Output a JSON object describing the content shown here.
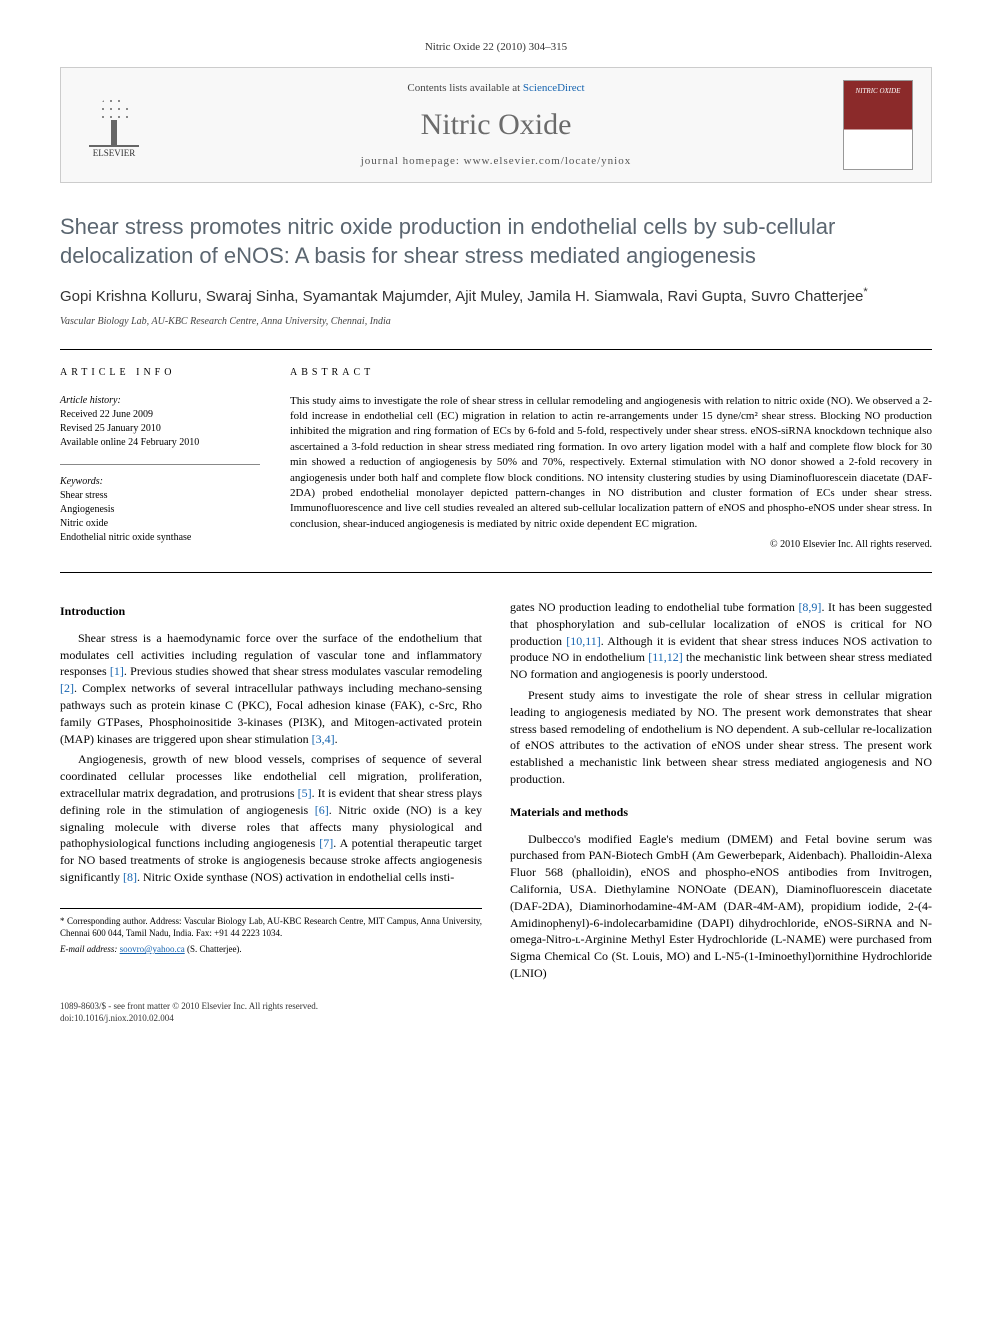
{
  "journal_header": "Nitric Oxide 22 (2010) 304–315",
  "masthead": {
    "contents_prefix": "Contents lists available at ",
    "contents_link": "ScienceDirect",
    "journal_name": "Nitric Oxide",
    "homepage_prefix": "journal homepage: ",
    "homepage_url": "www.elsevier.com/locate/yniox",
    "publisher_label": "ELSEVIER"
  },
  "article": {
    "title": "Shear stress promotes nitric oxide production in endothelial cells by sub-cellular delocalization of eNOS: A basis for shear stress mediated angiogenesis",
    "authors": "Gopi Krishna Kolluru, Swaraj Sinha, Syamantak Majumder, Ajit Muley, Jamila H. Siamwala, Ravi Gupta, Suvro Chatterjee",
    "corresponding_mark": "*",
    "affiliation": "Vascular Biology Lab, AU-KBC Research Centre, Anna University, Chennai, India"
  },
  "info": {
    "label": "ARTICLE INFO",
    "history_label": "Article history:",
    "received": "Received 22 June 2009",
    "revised": "Revised 25 January 2010",
    "online": "Available online 24 February 2010",
    "keywords_label": "Keywords:",
    "keywords": [
      "Shear stress",
      "Angiogenesis",
      "Nitric oxide",
      "Endothelial nitric oxide synthase"
    ]
  },
  "abstract": {
    "label": "ABSTRACT",
    "text": "This study aims to investigate the role of shear stress in cellular remodeling and angiogenesis with relation to nitric oxide (NO). We observed a 2-fold increase in endothelial cell (EC) migration in relation to actin re-arrangements under 15 dyne/cm² shear stress. Blocking NO production inhibited the migration and ring formation of ECs by 6-fold and 5-fold, respectively under shear stress. eNOS-siRNA knockdown technique also ascertained a 3-fold reduction in shear stress mediated ring formation. In ovo artery ligation model with a half and complete flow block for 30 min showed a reduction of angiogenesis by 50% and 70%, respectively. External stimulation with NO donor showed a 2-fold recovery in angiogenesis under both half and complete flow block conditions. NO intensity clustering studies by using Diaminofluorescein diacetate (DAF-2DA) probed endothelial monolayer depicted pattern-changes in NO distribution and cluster formation of ECs under shear stress. Immunofluorescence and live cell studies revealed an altered sub-cellular localization pattern of eNOS and phospho-eNOS under shear stress. In conclusion, shear-induced angiogenesis is mediated by nitric oxide dependent EC migration.",
    "copyright": "© 2010 Elsevier Inc. All rights reserved."
  },
  "body": {
    "intro_heading": "Introduction",
    "intro_p1": "Shear stress is a haemodynamic force over the surface of the endothelium that modulates cell activities including regulation of vascular tone and inflammatory responses [1]. Previous studies showed that shear stress modulates vascular remodeling [2]. Complex networks of several intracellular pathways including mechano-sensing pathways such as protein kinase C (PKC), Focal adhesion kinase (FAK), c-Src, Rho family GTPases, Phosphoinositide 3-kinases (PI3K), and Mitogen-activated protein (MAP) kinases are triggered upon shear stimulation [3,4].",
    "intro_p2": "Angiogenesis, growth of new blood vessels, comprises of sequence of several coordinated cellular processes like endothelial cell migration, proliferation, extracellular matrix degradation, and protrusions [5]. It is evident that shear stress plays defining role in the stimulation of angiogenesis [6]. Nitric oxide (NO) is a key signaling molecule with diverse roles that affects many physiological and pathophysiological functions including angiogenesis [7]. A potential therapeutic target for NO based treatments of stroke is angiogenesis because stroke affects angiogenesis significantly [8]. Nitric Oxide synthase (NOS) activation in endothelial cells insti-",
    "intro_p3": "gates NO production leading to endothelial tube formation [8,9]. It has been suggested that phosphorylation and sub-cellular localization of eNOS is critical for NO production [10,11]. Although it is evident that shear stress induces NOS activation to produce NO in endothelium [11,12] the mechanistic link between shear stress mediated NO formation and angiogenesis is poorly understood.",
    "intro_p4": "Present study aims to investigate the role of shear stress in cellular migration leading to angiogenesis mediated by NO. The present work demonstrates that shear stress based remodeling of endothelium is NO dependent. A sub-cellular re-localization of eNOS attributes to the activation of eNOS under shear stress. The present work established a mechanistic link between shear stress mediated angiogenesis and NO production.",
    "mm_heading": "Materials and methods",
    "mm_p1": "Dulbecco's modified Eagle's medium (DMEM) and Fetal bovine serum was purchased from PAN-Biotech GmbH (Am Gewerbepark, Aidenbach). Phalloidin-Alexa Fluor 568 (phalloidin), eNOS and phospho-eNOS antibodies from Invitrogen, California, USA. Diethylamine NONOate (DEAN), Diaminofluorescein diacetate (DAF-2DA), Diaminorhodamine-4M-AM (DAR-4M-AM), propidium iodide, 2-(4-Amidinophenyl)-6-indolecarbamidine (DAPI) dihydrochloride, eNOS-SiRNA and N-omega-Nitro-ʟ-Arginine Methyl Ester Hydrochloride (L-NAME) were purchased from Sigma Chemical Co (St. Louis, MO) and L-N5-(1-Iminoethyl)ornithine Hydrochloride (LNIO)"
  },
  "footnotes": {
    "corresponding": "* Corresponding author. Address: Vascular Biology Lab, AU-KBC Research Centre, MIT Campus, Anna University, Chennai 600 044, Tamil Nadu, India. Fax: +91 44 2223 1034.",
    "email_label": "E-mail address:",
    "email": "soovro@yahoo.ca",
    "email_owner": "(S. Chatterjee)."
  },
  "footer": {
    "left_line1": "1089-8603/$ - see front matter © 2010 Elsevier Inc. All rights reserved.",
    "left_line2": "doi:10.1016/j.niox.2010.02.004"
  },
  "refs": {
    "r1": "[1]",
    "r2": "[2]",
    "r34": "[3,4]",
    "r5": "[5]",
    "r6": "[6]",
    "r7": "[7]",
    "r8": "[8]",
    "r89": "[8,9]",
    "r1011": "[10,11]",
    "r1112": "[11,12]"
  },
  "colors": {
    "title_gray": "#5b6670",
    "link_blue": "#1664b0",
    "journal_gray": "#6b6b6b"
  }
}
